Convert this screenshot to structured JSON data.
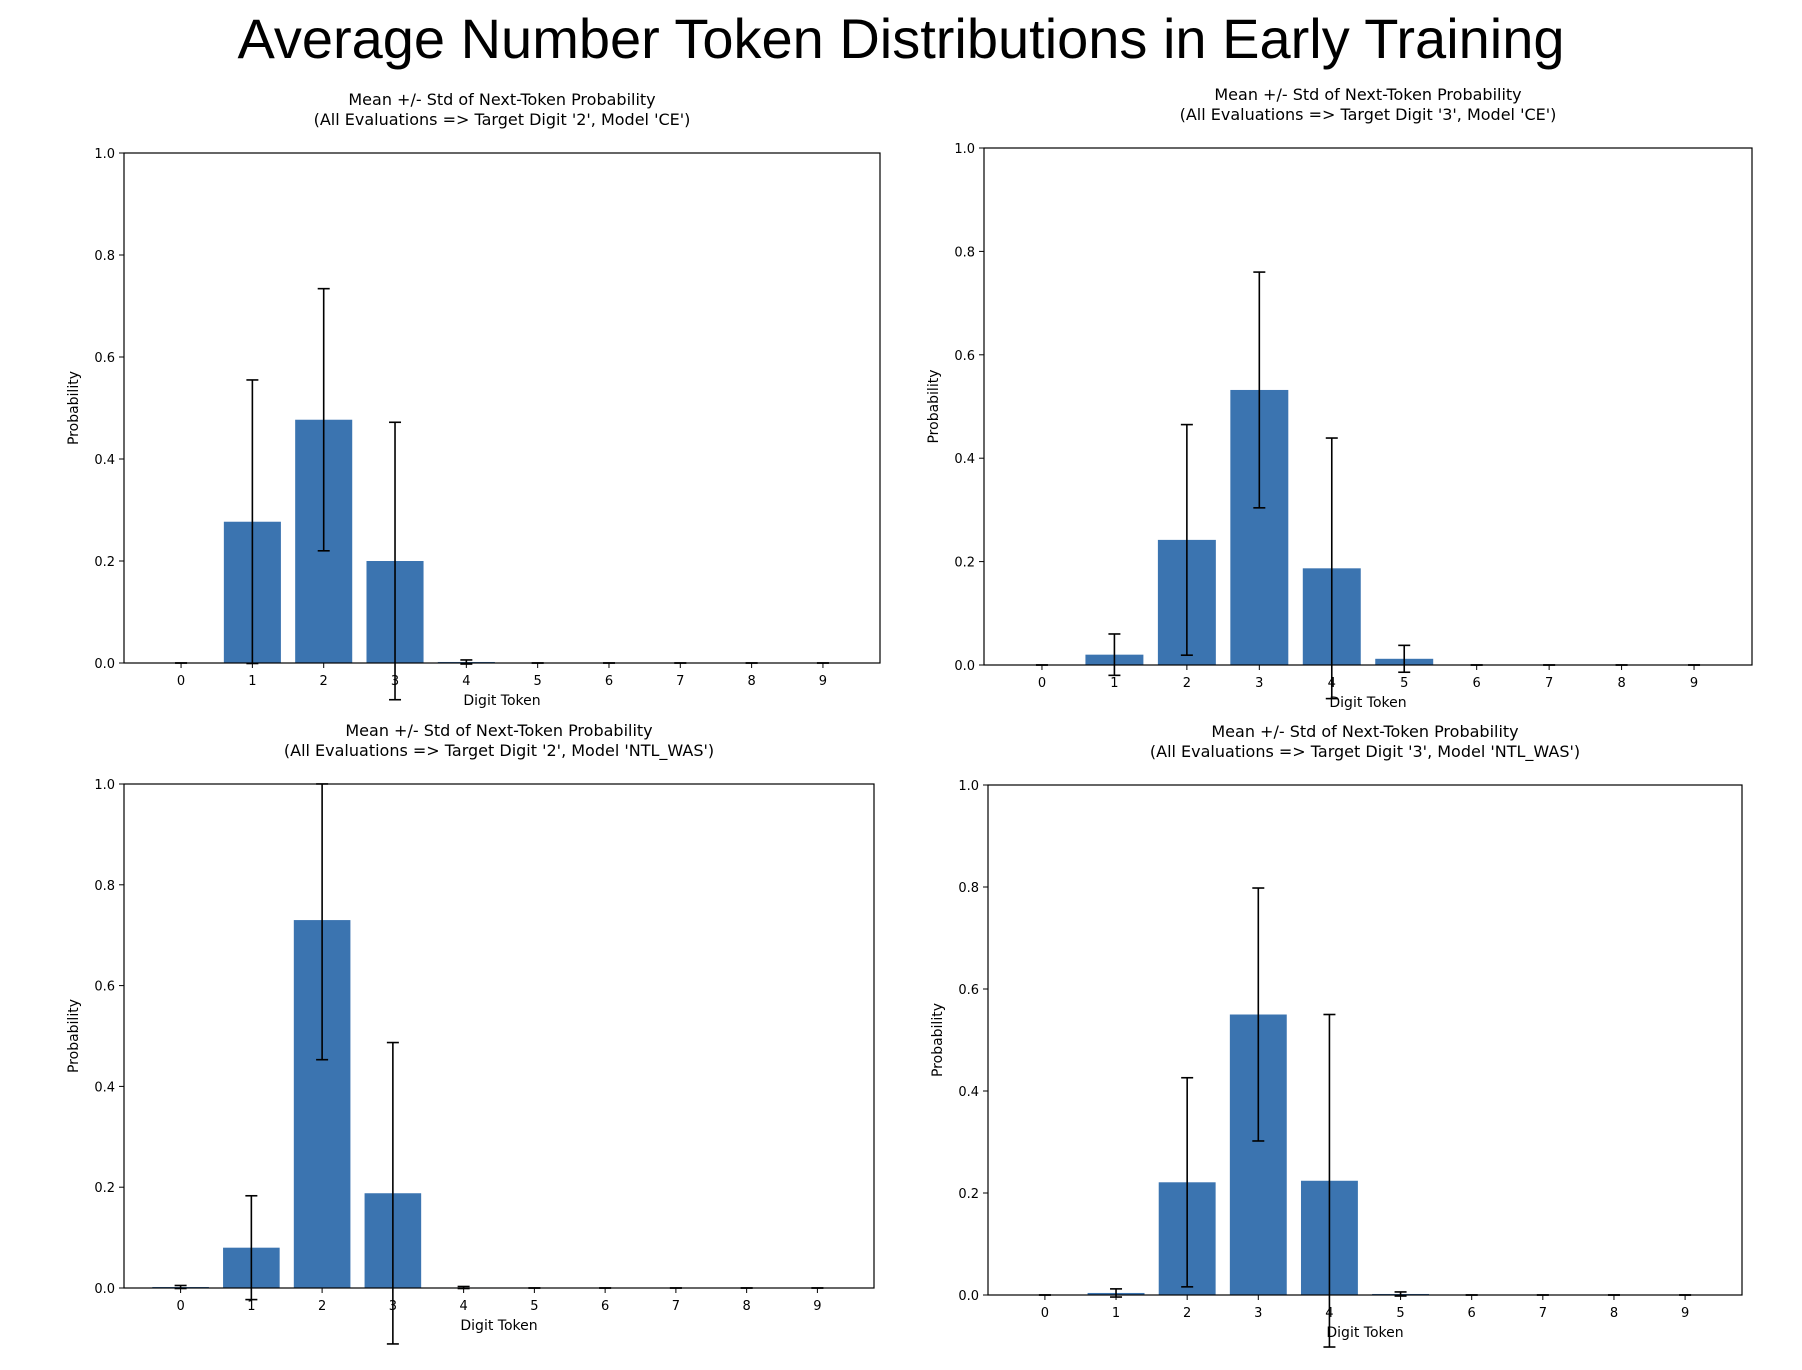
{
  "title": "Average Number Token Distributions in Early Training",
  "colors": {
    "bar": "#3b74b0",
    "error": "#000000",
    "axis": "#000000"
  },
  "chart_data": [
    {
      "type": "bar",
      "title_line1": "Mean +/- Std of Next-Token Probability",
      "title_line2": "(All Evaluations => Target Digit '2', Model 'CE')",
      "xlabel": "Digit Token",
      "ylabel": "Probability",
      "ylim": [
        0,
        1
      ],
      "yticks": [
        "0.0",
        "0.2",
        "0.4",
        "0.6",
        "0.8",
        "1.0"
      ],
      "categories": [
        "0",
        "1",
        "2",
        "3",
        "4",
        "5",
        "6",
        "7",
        "8",
        "9"
      ],
      "values": [
        0.0,
        0.277,
        0.477,
        0.2,
        0.002,
        0.0,
        0.0,
        0.0,
        0.0,
        0.0
      ],
      "std": [
        0.0,
        0.278,
        0.257,
        0.272,
        0.004,
        0.0,
        0.0,
        0.0,
        0.0,
        0.0
      ]
    },
    {
      "type": "bar",
      "title_line1": "Mean +/- Std of Next-Token Probability",
      "title_line2": "(All Evaluations => Target Digit '3', Model 'CE')",
      "xlabel": "Digit Token",
      "ylabel": "Probability",
      "ylim": [
        0,
        1
      ],
      "yticks": [
        "0.0",
        "0.2",
        "0.4",
        "0.6",
        "0.8",
        "1.0"
      ],
      "categories": [
        "0",
        "1",
        "2",
        "3",
        "4",
        "5",
        "6",
        "7",
        "8",
        "9"
      ],
      "values": [
        0.0,
        0.02,
        0.242,
        0.532,
        0.187,
        0.012,
        0.0,
        0.0,
        0.0,
        0.0
      ],
      "std": [
        0.0,
        0.04,
        0.223,
        0.228,
        0.252,
        0.026,
        0.0,
        0.0,
        0.0,
        0.0
      ]
    },
    {
      "type": "bar",
      "title_line1": "Mean +/- Std of Next-Token Probability",
      "title_line2": "(All Evaluations => Target Digit '2', Model 'NTL_WAS')",
      "xlabel": "Digit Token",
      "ylabel": "Probability",
      "ylim": [
        0,
        1
      ],
      "yticks": [
        "0.0",
        "0.2",
        "0.4",
        "0.6",
        "0.8",
        "1.0"
      ],
      "categories": [
        "0",
        "1",
        "2",
        "3",
        "4",
        "5",
        "6",
        "7",
        "8",
        "9"
      ],
      "values": [
        0.002,
        0.08,
        0.73,
        0.188,
        0.001,
        0.0,
        0.0,
        0.0,
        0.0,
        0.0
      ],
      "std": [
        0.003,
        0.103,
        0.277,
        0.299,
        0.002,
        0.0,
        0.0,
        0.0,
        0.0,
        0.0
      ]
    },
    {
      "type": "bar",
      "title_line1": "Mean +/- Std of Next-Token Probability",
      "title_line2": "(All Evaluations => Target Digit '3', Model 'NTL_WAS')",
      "xlabel": "Digit Token",
      "ylabel": "Probability",
      "ylim": [
        0,
        1
      ],
      "yticks": [
        "0.0",
        "0.2",
        "0.4",
        "0.6",
        "0.8",
        "1.0"
      ],
      "categories": [
        "0",
        "1",
        "2",
        "3",
        "4",
        "5",
        "6",
        "7",
        "8",
        "9"
      ],
      "values": [
        0.0,
        0.004,
        0.221,
        0.55,
        0.224,
        0.002,
        0.0,
        0.0,
        0.0,
        0.0
      ],
      "std": [
        0.0,
        0.008,
        0.205,
        0.248,
        0.326,
        0.004,
        0.0,
        0.0,
        0.0,
        0.0
      ]
    }
  ]
}
